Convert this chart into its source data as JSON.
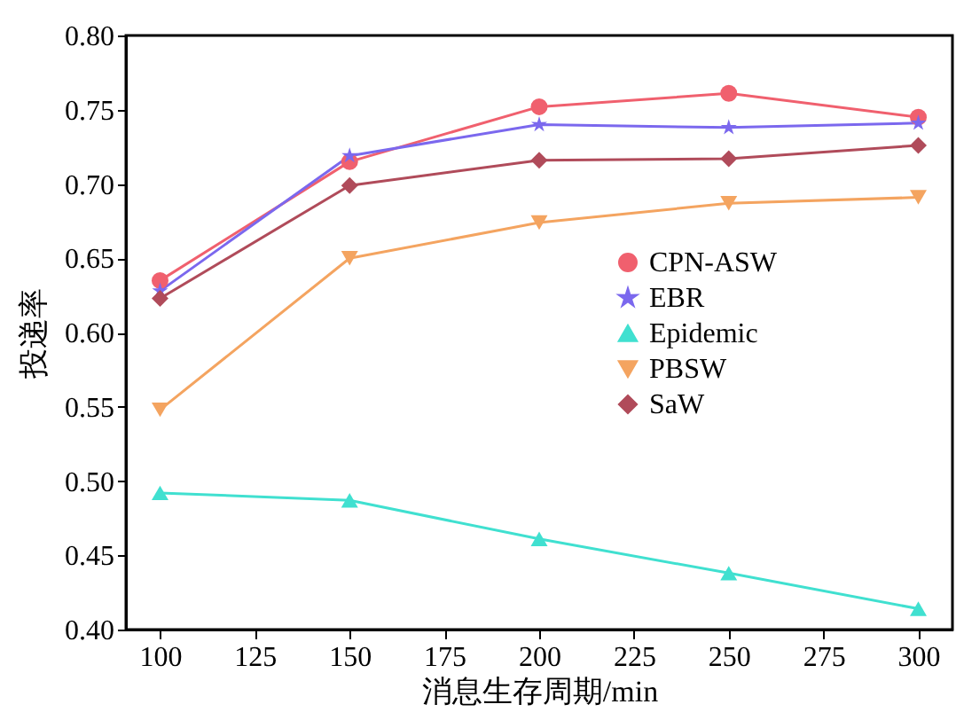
{
  "chart_data": {
    "type": "line",
    "xlabel": "消息生存周期/min",
    "ylabel": "投递率",
    "x": [
      100,
      150,
      200,
      250,
      300
    ],
    "series": [
      {
        "name": "CPN-ASW",
        "color": "#f0606e",
        "marker": "circle",
        "values": [
          0.635,
          0.715,
          0.752,
          0.761,
          0.745
        ]
      },
      {
        "name": "EBR",
        "color": "#7b68ee",
        "marker": "star",
        "values": [
          0.628,
          0.719,
          0.74,
          0.738,
          0.741
        ]
      },
      {
        "name": "Epidemic",
        "color": "#40e0d0",
        "marker": "triangle",
        "values": [
          0.492,
          0.487,
          0.461,
          0.438,
          0.414
        ]
      },
      {
        "name": "PBSW",
        "color": "#f4a460",
        "marker": "triangle-down",
        "values": [
          0.548,
          0.65,
          0.674,
          0.687,
          0.691
        ]
      },
      {
        "name": "SaW",
        "color": "#b04b5a",
        "marker": "diamond",
        "values": [
          0.623,
          0.699,
          0.716,
          0.717,
          0.726
        ]
      }
    ],
    "xlim": [
      91,
      309
    ],
    "xticks": [
      100,
      125,
      150,
      175,
      200,
      225,
      250,
      275,
      300
    ],
    "ylim": [
      0.4,
      0.8
    ],
    "yticks": [
      {
        "value": 0.4,
        "label": "0.40"
      },
      {
        "value": 0.45,
        "label": "0.45"
      },
      {
        "value": 0.5,
        "label": "0.50"
      },
      {
        "value": 0.55,
        "label": "0.55"
      },
      {
        "value": 0.6,
        "label": "0.60"
      },
      {
        "value": 0.65,
        "label": "0.65"
      },
      {
        "value": 0.7,
        "label": "0.70"
      },
      {
        "value": 0.75,
        "label": "0.75"
      },
      {
        "value": 0.8,
        "label": "0.80"
      }
    ],
    "grid": false,
    "legend": "right",
    "line_style": "solid"
  }
}
